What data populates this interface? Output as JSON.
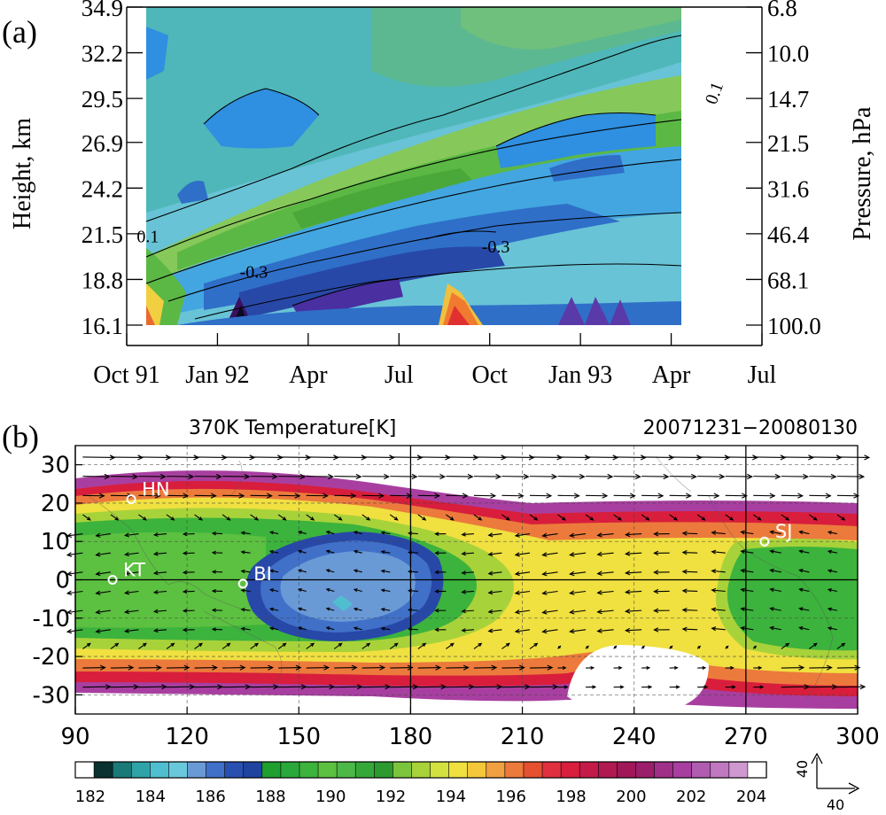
{
  "chart_data": [
    {
      "panel_label": "(a)",
      "type": "heatmap",
      "ylabel_left": "Height, km",
      "ylabel_right": "Pressure, hPa",
      "y_ticks_height_km": [
        "34.9",
        "32.2",
        "29.5",
        "26.9",
        "24.2",
        "21.5",
        "18.8",
        "16.1"
      ],
      "y_ticks_pressure_hpa": [
        "6.8",
        "10.0",
        "14.7",
        "21.5",
        "31.6",
        "46.4",
        "68.1",
        "100.0"
      ],
      "x_ticks": [
        "Oct 91",
        "Jan 92",
        "Apr",
        "Jul",
        "Oct",
        "Jan 93",
        "Apr",
        "Jul"
      ],
      "contour_labels": [
        {
          "text": "0.1",
          "x_month_index": 0.7,
          "y_km": 21.0
        },
        {
          "text": "-0.3",
          "x_month_index": 4.2,
          "y_km": 18.9
        },
        {
          "text": "-0.3",
          "x_month_index": 12.2,
          "y_km": 20.4
        },
        {
          "text": "0.1",
          "x_month_index": 19.6,
          "y_km": 29.7
        }
      ],
      "grid": false
    },
    {
      "panel_label": "(b)",
      "type": "heatmap",
      "title": "370K Temperature[K]",
      "date_range": "20071231−20080130",
      "x_ticks": [
        "90",
        "120",
        "150",
        "180",
        "210",
        "240",
        "270",
        "300"
      ],
      "y_ticks": [
        "30",
        "20",
        "10",
        "0",
        "-10",
        "-20",
        "-30"
      ],
      "xlim": [
        90,
        300
      ],
      "ylim": [
        -35,
        35
      ],
      "stations": [
        {
          "name": "HN",
          "lon": 105,
          "lat": 21
        },
        {
          "name": "KT",
          "lon": 100,
          "lat": 0
        },
        {
          "name": "BI",
          "lon": 135,
          "lat": -1
        },
        {
          "name": "SJ",
          "lon": 275,
          "lat": 10
        }
      ],
      "colorbar": {
        "min": 181.5,
        "max": 204.5,
        "labels": [
          "182",
          "184",
          "186",
          "188",
          "190",
          "192",
          "194",
          "196",
          "198",
          "200",
          "202",
          "204"
        ],
        "colors": [
          "#ffffff",
          "#0a3030",
          "#1a7a78",
          "#2fa3a8",
          "#4fbfcf",
          "#6ac8dc",
          "#6a9ad6",
          "#4070c8",
          "#2850b0",
          "#1f44a0",
          "#1f9f2f",
          "#2aa83a",
          "#3cb33c",
          "#5cc040",
          "#4cb848",
          "#36a83a",
          "#2c9a30",
          "#7cc43c",
          "#a8d23a",
          "#d2e040",
          "#f0e040",
          "#f4c83a",
          "#f0a040",
          "#ec7a3c",
          "#e45030",
          "#e03040",
          "#d81e3c",
          "#c41a48",
          "#b01a50",
          "#a01858",
          "#9a1e6a",
          "#a02f88",
          "#a83fa0",
          "#b05cb0",
          "#c078c0",
          "#d098d0",
          "#ffffff"
        ]
      },
      "vector_scale": {
        "label_vertical": "40",
        "label_horizontal": "40"
      },
      "grid": true
    }
  ]
}
